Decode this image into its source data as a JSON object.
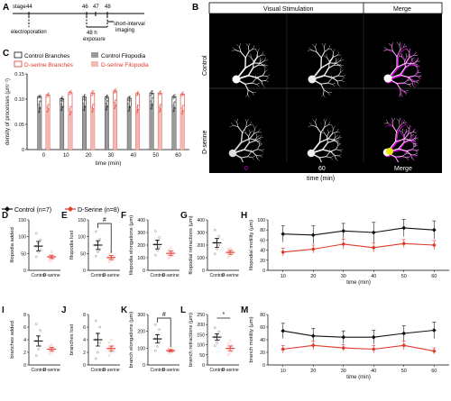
{
  "colors": {
    "control": "#111111",
    "dserine": "#e0392b",
    "dserine_light": "#f4b8b3",
    "control_gray": "#9a9a9a",
    "magenta": "#e000e0"
  },
  "panel_letters": [
    "A",
    "B",
    "C",
    "D",
    "E",
    "F",
    "G",
    "H",
    "I",
    "J",
    "K",
    "L",
    "M"
  ],
  "panel_a": {
    "stage_label": "stage",
    "stage_ticks": [
      "44",
      "46",
      "47",
      "48"
    ],
    "left_note": "electroporation",
    "mid_note_1": "48 h",
    "mid_note_2": "exposure",
    "right_note_1": "short-interval",
    "right_note_2": "imaging"
  },
  "panel_b": {
    "header_left": "Visual Stimulation",
    "header_right": "Merge",
    "row_labels": [
      "Control",
      "D-serine"
    ],
    "footer_t0": "0",
    "footer_t1": "60",
    "footer_merge": "Merge",
    "xlabel": "time (min)"
  },
  "legend_c": {
    "items": [
      "Control Branches",
      "Control Filopodia",
      "D-serine Branches",
      "D-serine Filopodia"
    ]
  },
  "legend_main": {
    "control": "Control (n=7)",
    "dserine": "D-Serine (n=8)"
  },
  "chart_data": [
    {
      "id": "C",
      "type": "bar",
      "title": "",
      "xlabel": "time (min)",
      "ylabel": "density of processes (μm⁻¹)",
      "categories": [
        "0",
        "10",
        "20",
        "30",
        "40",
        "50",
        "60"
      ],
      "ylim": [
        0,
        0.15
      ],
      "yticks": [
        "0",
        "0.05",
        "0.10",
        "0.15"
      ],
      "series": [
        {
          "name": "Control Branches",
          "values": [
            0.105,
            0.101,
            0.104,
            0.104,
            0.102,
            0.112,
            0.105
          ],
          "err": [
            0.003,
            0.004,
            0.005,
            0.004,
            0.004,
            0.005,
            0.004
          ]
        },
        {
          "name": "Control Filopodia",
          "values": [
            0.085,
            0.087,
            0.088,
            0.088,
            0.087,
            0.092,
            0.085
          ],
          "err": [
            0.012,
            0.01,
            0.011,
            0.01,
            0.011,
            0.012,
            0.01
          ]
        },
        {
          "name": "D-serine Branches",
          "values": [
            0.108,
            0.113,
            0.112,
            0.116,
            0.111,
            0.112,
            0.11
          ],
          "err": [
            0.004,
            0.004,
            0.005,
            0.004,
            0.004,
            0.004,
            0.004
          ]
        },
        {
          "name": "D-serine Filopodia",
          "values": [
            0.082,
            0.077,
            0.082,
            0.09,
            0.081,
            0.082,
            0.079
          ],
          "err": [
            0.008,
            0.009,
            0.008,
            0.009,
            0.008,
            0.008,
            0.009
          ]
        }
      ]
    },
    {
      "id": "D",
      "type": "scatter",
      "xlabel": "",
      "ylabel": "filopodia added",
      "categories": [
        "Control",
        "D-serine"
      ],
      "ylim": [
        0,
        150
      ],
      "yticks": [
        "0",
        "50",
        "100",
        "150"
      ],
      "means": [
        72,
        40
      ],
      "sems": [
        14,
        5
      ],
      "points": [
        [
          40,
          55,
          60,
          72,
          80,
          90,
          110
        ],
        [
          28,
          30,
          35,
          38,
          40,
          42,
          45,
          55
        ]
      ],
      "annotation": ""
    },
    {
      "id": "E",
      "type": "scatter",
      "xlabel": "",
      "ylabel": "filopodia lost",
      "categories": [
        "Control",
        "D-serine"
      ],
      "ylim": [
        0,
        150
      ],
      "yticks": [
        "0",
        "50",
        "100",
        "150"
      ],
      "means": [
        75,
        38
      ],
      "sems": [
        13,
        6
      ],
      "points": [
        [
          42,
          55,
          62,
          75,
          82,
          92,
          115
        ],
        [
          25,
          28,
          32,
          35,
          40,
          42,
          48,
          55
        ]
      ],
      "annotation": "#"
    },
    {
      "id": "F",
      "type": "scatter",
      "xlabel": "",
      "ylabel": "filopodia elongations (μm)",
      "categories": [
        "Control",
        "D-serine"
      ],
      "ylim": [
        0,
        400
      ],
      "yticks": [
        "0",
        "100",
        "200",
        "300",
        "400"
      ],
      "means": [
        205,
        135
      ],
      "sems": [
        35,
        18
      ],
      "points": [
        [
          120,
          160,
          185,
          205,
          230,
          260,
          310
        ],
        [
          95,
          110,
          120,
          130,
          140,
          150,
          160,
          175
        ]
      ],
      "annotation": ""
    },
    {
      "id": "G",
      "type": "scatter",
      "xlabel": "",
      "ylabel": "filopodial retractions (μm)",
      "categories": [
        "Control",
        "D-serine"
      ],
      "ylim": [
        0,
        400
      ],
      "yticks": [
        "0",
        "100",
        "200",
        "300",
        "400"
      ],
      "means": [
        218,
        142
      ],
      "sems": [
        35,
        15
      ],
      "points": [
        [
          130,
          170,
          200,
          220,
          240,
          270,
          320
        ],
        [
          105,
          115,
          130,
          140,
          150,
          160,
          170,
          175
        ]
      ],
      "annotation": ""
    },
    {
      "id": "H",
      "type": "line",
      "xlabel": "time (min)",
      "ylabel": "filopodial motility (μm)",
      "x": [
        10,
        20,
        30,
        40,
        50,
        60
      ],
      "ylim": [
        0,
        100
      ],
      "yticks": [
        "0",
        "20",
        "40",
        "60",
        "80",
        "100"
      ],
      "series": [
        {
          "name": "Control (n=7)",
          "values": [
            72,
            70,
            78,
            75,
            84,
            80
          ],
          "err": [
            16,
            18,
            15,
            20,
            17,
            18
          ]
        },
        {
          "name": "D-Serine (n=8)",
          "values": [
            36,
            42,
            52,
            45,
            53,
            50
          ],
          "err": [
            8,
            8,
            10,
            9,
            8,
            9
          ]
        }
      ],
      "annotation": ""
    },
    {
      "id": "I",
      "type": "scatter",
      "xlabel": "",
      "ylabel": "branches added",
      "categories": [
        "Control",
        "D-serine"
      ],
      "ylim": [
        0,
        8
      ],
      "yticks": [
        "0",
        "2",
        "4",
        "6",
        "8"
      ],
      "means": [
        3.8,
        2.5
      ],
      "sems": [
        0.8,
        0.3
      ],
      "points": [
        [
          1.5,
          2.5,
          3.0,
          3.8,
          4.5,
          5.5,
          6.5
        ],
        [
          1.8,
          2.0,
          2.2,
          2.5,
          2.6,
          2.8,
          3.0,
          3.2
        ]
      ],
      "annotation": ""
    },
    {
      "id": "J",
      "type": "scatter",
      "xlabel": "",
      "ylabel": "branches lost",
      "categories": [
        "Control",
        "D-serine"
      ],
      "ylim": [
        0,
        8
      ],
      "yticks": [
        "0",
        "2",
        "4",
        "6",
        "8"
      ],
      "means": [
        4.0,
        2.6
      ],
      "sems": [
        1.0,
        0.4
      ],
      "points": [
        [
          1.0,
          2.0,
          3.5,
          4.0,
          5.0,
          6.0,
          7.0
        ],
        [
          1.5,
          2.0,
          2.3,
          2.6,
          2.8,
          3.0,
          3.5,
          4.0
        ]
      ],
      "annotation": ""
    },
    {
      "id": "K",
      "type": "scatter",
      "xlabel": "",
      "ylabel": "branch elongations (μm)",
      "categories": [
        "Control",
        "D-serine"
      ],
      "ylim": [
        0,
        300
      ],
      "yticks": [
        "0",
        "100",
        "200",
        "300"
      ],
      "means": [
        155,
        85
      ],
      "sems": [
        25,
        6
      ],
      "points": [
        [
          85,
          110,
          140,
          155,
          180,
          210,
          240
        ],
        [
          70,
          75,
          80,
          85,
          88,
          92,
          95,
          100
        ]
      ],
      "annotation": "#"
    },
    {
      "id": "L",
      "type": "scatter",
      "xlabel": "",
      "ylabel": "branch retractions (μm)",
      "categories": [
        "Control",
        "D-serine"
      ],
      "ylim": [
        0,
        250
      ],
      "yticks": [
        "0",
        "50",
        "100",
        "150",
        "200",
        "250"
      ],
      "means": [
        138,
        82
      ],
      "sems": [
        16,
        12
      ],
      "points": [
        [
          95,
          110,
          125,
          138,
          150,
          165,
          185
        ],
        [
          50,
          60,
          70,
          80,
          88,
          95,
          105,
          120
        ]
      ],
      "annotation": "*"
    },
    {
      "id": "M",
      "type": "line",
      "xlabel": "time (min)",
      "ylabel": "branch motility (μm)",
      "x": [
        10,
        20,
        30,
        40,
        50,
        60
      ],
      "ylim": [
        0,
        80
      ],
      "yticks": [
        "0",
        "20",
        "40",
        "60",
        "80"
      ],
      "series": [
        {
          "name": "Control (n=7)",
          "values": [
            54,
            46,
            44,
            44,
            50,
            55
          ],
          "err": [
            12,
            12,
            10,
            11,
            12,
            13
          ]
        },
        {
          "name": "D-Serine (n=8)",
          "values": [
            25,
            31,
            27,
            25,
            31,
            22
          ],
          "err": [
            6,
            7,
            5,
            6,
            7,
            5
          ]
        }
      ],
      "annotation": "*"
    }
  ]
}
